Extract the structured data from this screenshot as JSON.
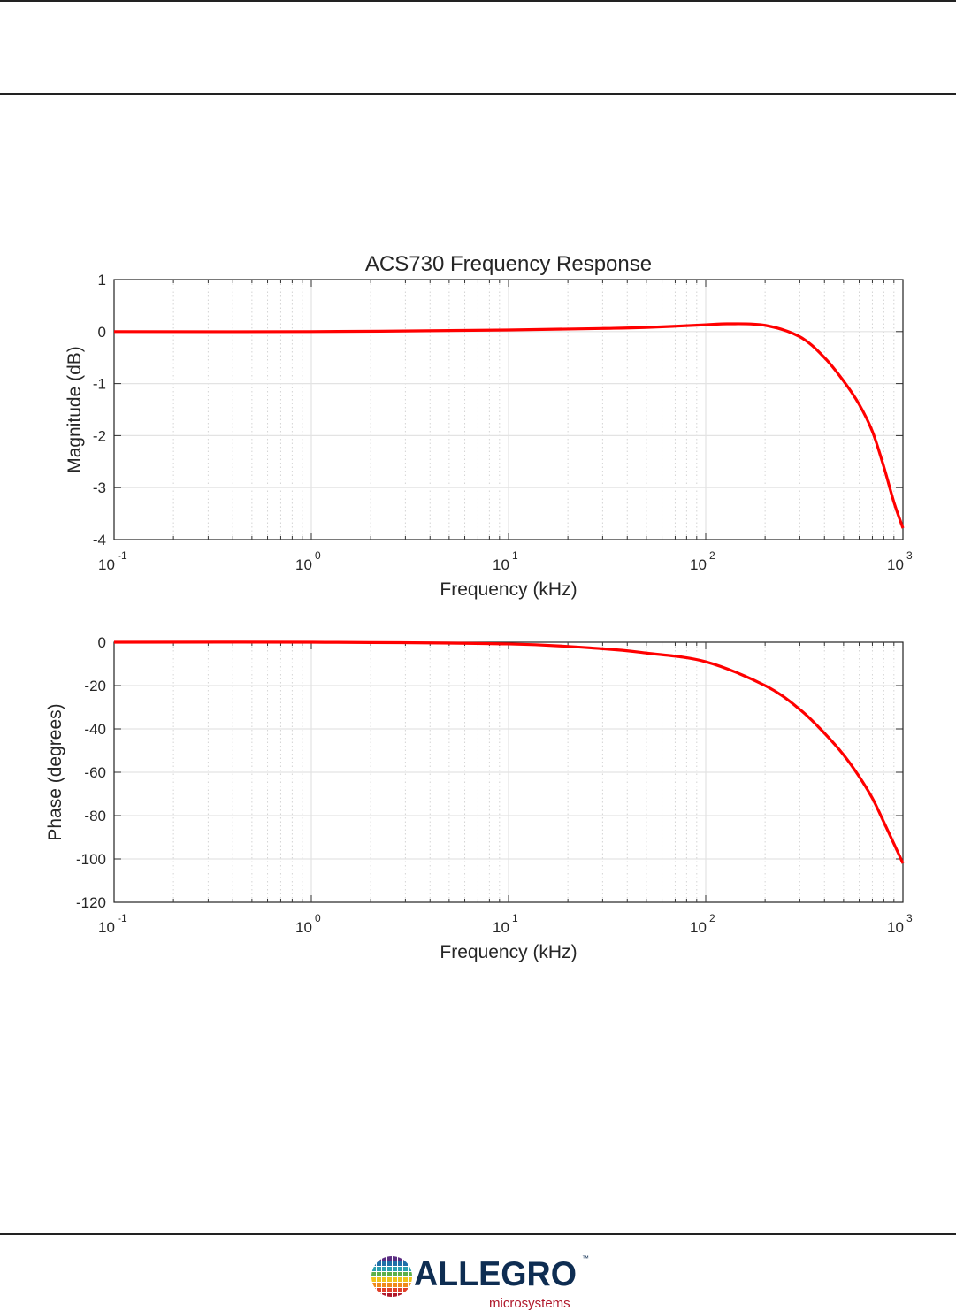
{
  "chart_data": [
    {
      "type": "line",
      "title": "ACS730 Frequency Response",
      "xlabel": "Frequency (kHz)",
      "ylabel": "Magnitude (dB)",
      "xscale": "log",
      "xlim": [
        0.1,
        1000
      ],
      "ylim": [
        -4,
        1
      ],
      "grid": true,
      "x_ticks": [
        {
          "base": "10",
          "exp": "-1",
          "value": 0.1
        },
        {
          "base": "10",
          "exp": "0",
          "value": 1
        },
        {
          "base": "10",
          "exp": "1",
          "value": 10
        },
        {
          "base": "10",
          "exp": "2",
          "value": 100
        },
        {
          "base": "10",
          "exp": "3",
          "value": 1000
        }
      ],
      "y_ticks": [
        "1",
        "0",
        "-1",
        "-2",
        "-3",
        "-4"
      ],
      "y_tick_values": [
        1,
        0,
        -1,
        -2,
        -3,
        -4
      ],
      "series": [
        {
          "color": "#ff0000",
          "x": [
            0.1,
            1,
            10,
            30,
            50,
            100,
            130,
            200,
            300,
            400,
            500,
            600,
            700,
            800,
            900,
            1000
          ],
          "y": [
            0,
            0,
            0.03,
            0.06,
            0.08,
            0.13,
            0.15,
            0.12,
            -0.1,
            -0.5,
            -0.95,
            -1.4,
            -1.92,
            -2.6,
            -3.28,
            -3.78
          ]
        }
      ]
    },
    {
      "type": "line",
      "title": "",
      "xlabel": "Frequency (kHz)",
      "ylabel": "Phase (degrees)",
      "xscale": "log",
      "xlim": [
        0.1,
        1000
      ],
      "ylim": [
        -120,
        0
      ],
      "grid": true,
      "x_ticks": [
        {
          "base": "10",
          "exp": "-1",
          "value": 0.1
        },
        {
          "base": "10",
          "exp": "0",
          "value": 1
        },
        {
          "base": "10",
          "exp": "1",
          "value": 10
        },
        {
          "base": "10",
          "exp": "2",
          "value": 100
        },
        {
          "base": "10",
          "exp": "3",
          "value": 1000
        }
      ],
      "y_ticks": [
        "0",
        "-20",
        "-40",
        "-60",
        "-80",
        "-100",
        "-120"
      ],
      "y_tick_values": [
        0,
        -20,
        -40,
        -60,
        -80,
        -100,
        -120
      ],
      "series": [
        {
          "color": "#ff0000",
          "x": [
            0.1,
            1,
            10,
            30,
            50,
            100,
            200,
            300,
            400,
            500,
            600,
            700,
            800,
            900,
            1000
          ],
          "y": [
            0,
            0,
            -0.8,
            -3,
            -5,
            -9,
            -20,
            -31,
            -42,
            -52,
            -62,
            -72,
            -83,
            -93,
            -102
          ]
        }
      ]
    }
  ],
  "footer": {
    "logo_text": "ALLEGRO",
    "logo_subtext": "microsystems",
    "logo_tm": "™",
    "logo_color": "#0e2d52",
    "logo_sub_color": "#b0182b"
  }
}
